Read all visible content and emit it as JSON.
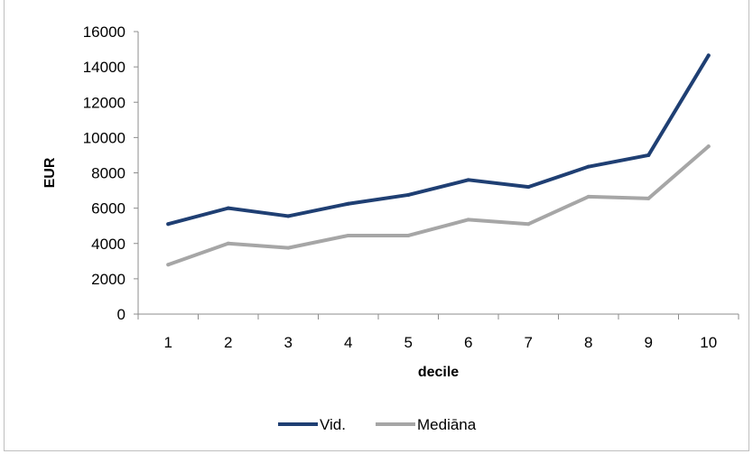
{
  "chart_data": {
    "type": "line",
    "categories": [
      "1",
      "2",
      "3",
      "4",
      "5",
      "6",
      "7",
      "8",
      "9",
      "10"
    ],
    "series": [
      {
        "name": "Vid.",
        "color": "#1f3f73",
        "values": [
          5100,
          6000,
          5550,
          6250,
          6750,
          7600,
          7200,
          8350,
          9000,
          14650
        ]
      },
      {
        "name": "Mediāna",
        "color": "#a6a6a6",
        "values": [
          2800,
          4000,
          3750,
          4450,
          4450,
          5350,
          5100,
          6650,
          6550,
          9500
        ]
      }
    ],
    "xlabel": "decile",
    "ylabel": "EUR",
    "ylim": [
      0,
      16000
    ],
    "yticks": [
      0,
      2000,
      4000,
      6000,
      8000,
      10000,
      12000,
      14000,
      16000
    ],
    "grid": false,
    "legend": "bottom"
  }
}
